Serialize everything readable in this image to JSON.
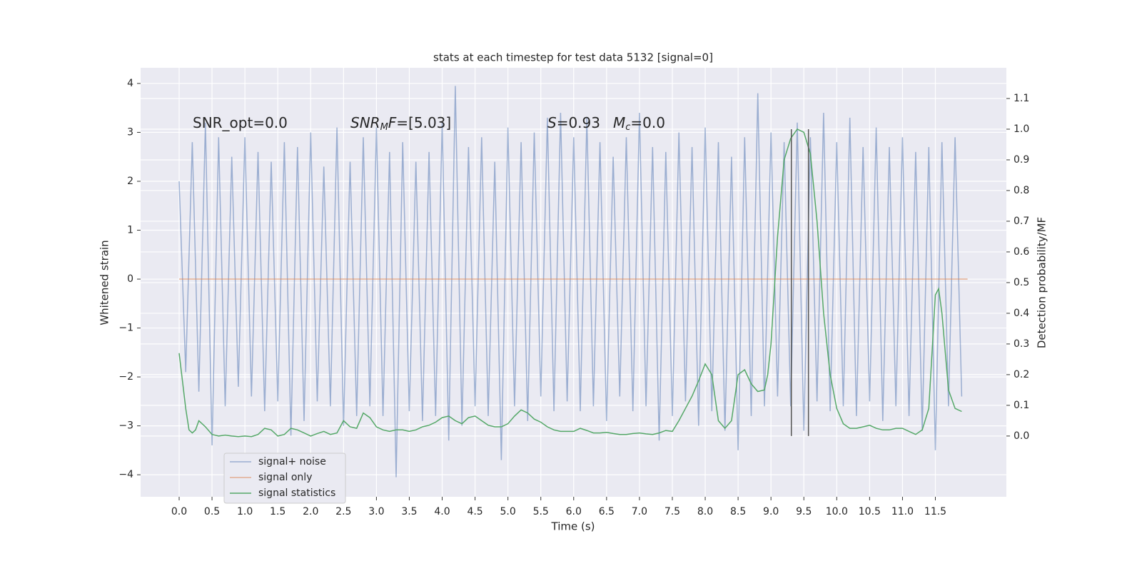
{
  "chart_data": {
    "type": "line",
    "title": "stats at each timestep for test data 5132 [signal=0]",
    "xlabel": "Time (s)",
    "ylabel": "Whitened strain",
    "y2label": "Detection probability/MF",
    "xlim": [
      -0.586,
      12.58
    ],
    "ylim": [
      -4.45,
      4.32
    ],
    "y2lim": [
      -0.198,
      1.2
    ],
    "xticks": [
      {
        "value": 0,
        "label": "0.0"
      },
      0.5,
      {
        "value": 1,
        "label": "1.0"
      },
      1.5,
      {
        "value": 2,
        "label": "2.0"
      },
      2.5,
      {
        "value": 3,
        "label": "3.0"
      },
      3.5,
      {
        "value": 4,
        "label": "4.0"
      },
      4.5,
      {
        "value": 5,
        "label": "5.0"
      },
      5.5,
      {
        "value": 6,
        "label": "6.0"
      },
      6.5,
      {
        "value": 7,
        "label": "7.0"
      },
      7.5,
      {
        "value": 8,
        "label": "8.0"
      },
      8.5,
      {
        "value": 9,
        "label": "9.0"
      },
      9.5,
      {
        "value": 10,
        "label": "10.0"
      },
      10.5,
      {
        "value": 11,
        "label": "11.0"
      },
      11.5
    ],
    "yticks": [
      {
        "value": -4,
        "label": "−4"
      },
      {
        "value": -3,
        "label": "−3"
      },
      {
        "value": -2,
        "label": "−2"
      },
      {
        "value": -1,
        "label": "−1"
      },
      0,
      1,
      2,
      3,
      4
    ],
    "y2ticks": [
      {
        "value": 0,
        "label": "0.0"
      },
      0.1,
      0.2,
      0.3,
      0.4,
      0.5,
      0.6,
      0.7,
      0.8,
      0.9,
      {
        "value": 1,
        "label": "1.0"
      },
      1.1
    ],
    "grid": true,
    "legend": "lower left",
    "series": [
      {
        "name": "signal+ noise",
        "color": "#4c72b0",
        "opacity": 0.5,
        "x": [
          0.0,
          0.1,
          0.2,
          0.3,
          0.4,
          0.5,
          0.6,
          0.7,
          0.8,
          0.9,
          1.0,
          1.1,
          1.2,
          1.3,
          1.4,
          1.5,
          1.6,
          1.7,
          1.8,
          1.9,
          2.0,
          2.1,
          2.2,
          2.3,
          2.4,
          2.5,
          2.6,
          2.7,
          2.8,
          2.9,
          3.0,
          3.1,
          3.2,
          3.3,
          3.4,
          3.5,
          3.6,
          3.7,
          3.8,
          3.9,
          4.0,
          4.1,
          4.2,
          4.3,
          4.4,
          4.5,
          4.6,
          4.7,
          4.8,
          4.9,
          5.0,
          5.1,
          5.2,
          5.3,
          5.4,
          5.5,
          5.6,
          5.7,
          5.8,
          5.9,
          6.0,
          6.1,
          6.2,
          6.3,
          6.4,
          6.5,
          6.6,
          6.7,
          6.8,
          6.9,
          7.0,
          7.1,
          7.2,
          7.3,
          7.4,
          7.5,
          7.6,
          7.7,
          7.8,
          7.9,
          8.0,
          8.1,
          8.2,
          8.3,
          8.4,
          8.5,
          8.6,
          8.7,
          8.8,
          8.9,
          9.0,
          9.1,
          9.2,
          9.3,
          9.4,
          9.5,
          9.6,
          9.7,
          9.8,
          9.9,
          10.0,
          10.1,
          10.2,
          10.3,
          10.4,
          10.5,
          10.6,
          10.7,
          10.8,
          10.9,
          11.0,
          11.1,
          11.2,
          11.3,
          11.4,
          11.5,
          11.6,
          11.7,
          11.8,
          11.9
        ],
        "values": [
          2.0,
          -1.9,
          2.8,
          -2.3,
          3.2,
          -3.4,
          2.9,
          -2.6,
          2.5,
          -2.2,
          2.9,
          -2.4,
          2.6,
          -2.7,
          2.4,
          -2.5,
          2.8,
          -3.2,
          2.7,
          -2.9,
          3.0,
          -2.5,
          2.3,
          -2.6,
          3.1,
          -3.0,
          2.4,
          -2.8,
          2.9,
          -2.6,
          3.1,
          -2.8,
          2.6,
          -4.05,
          2.8,
          -2.7,
          2.4,
          -2.9,
          2.6,
          -2.8,
          3.2,
          -3.3,
          3.95,
          -3.0,
          2.7,
          -2.6,
          2.9,
          -2.8,
          2.4,
          -3.7,
          3.1,
          -2.6,
          2.8,
          -2.9,
          3.0,
          -2.4,
          3.3,
          -2.7,
          3.4,
          -2.5,
          2.9,
          -2.7,
          3.3,
          -2.6,
          2.8,
          -2.9,
          2.5,
          -2.4,
          2.9,
          -2.7,
          3.4,
          -2.6,
          2.7,
          -3.3,
          2.6,
          -2.8,
          3.0,
          -2.5,
          2.7,
          -3.0,
          3.1,
          -2.7,
          2.8,
          -3.1,
          2.5,
          -3.5,
          2.9,
          -2.8,
          3.8,
          -2.6,
          3.0,
          -2.4,
          2.8,
          -2.6,
          3.2,
          -3.1,
          2.9,
          -2.5,
          3.4,
          -2.7,
          2.8,
          -2.6,
          3.3,
          -2.8,
          2.7,
          -2.5,
          3.1,
          -2.9,
          2.7,
          -2.6,
          2.9,
          -2.8,
          2.6,
          -3.1,
          2.7,
          -3.5,
          2.8,
          -2.6,
          2.9,
          -2.4
        ]
      },
      {
        "name": "signal only",
        "color": "#dd8452",
        "opacity": 0.6,
        "x": [
          0.0,
          11.99
        ],
        "values": [
          0,
          0
        ]
      },
      {
        "name": "signal statistics",
        "color": "#55a868",
        "axis": "y2",
        "x": [
          0.0,
          0.1,
          0.15,
          0.2,
          0.25,
          0.3,
          0.4,
          0.5,
          0.6,
          0.7,
          0.8,
          0.9,
          1.0,
          1.1,
          1.2,
          1.3,
          1.4,
          1.5,
          1.6,
          1.7,
          1.8,
          1.9,
          2.0,
          2.1,
          2.2,
          2.3,
          2.4,
          2.5,
          2.6,
          2.7,
          2.8,
          2.9,
          3.0,
          3.1,
          3.2,
          3.3,
          3.4,
          3.5,
          3.6,
          3.7,
          3.8,
          3.9,
          4.0,
          4.1,
          4.2,
          4.3,
          4.4,
          4.5,
          4.6,
          4.7,
          4.8,
          4.9,
          5.0,
          5.1,
          5.2,
          5.3,
          5.4,
          5.5,
          5.6,
          5.7,
          5.8,
          5.9,
          6.0,
          6.1,
          6.2,
          6.3,
          6.4,
          6.5,
          6.6,
          6.7,
          6.8,
          6.9,
          7.0,
          7.1,
          7.2,
          7.3,
          7.4,
          7.5,
          7.6,
          7.7,
          7.8,
          7.9,
          8.0,
          8.1,
          8.2,
          8.3,
          8.4,
          8.5,
          8.6,
          8.7,
          8.8,
          8.9,
          8.95,
          9.0,
          9.1,
          9.2,
          9.3,
          9.4,
          9.5,
          9.6,
          9.7,
          9.8,
          9.9,
          10.0,
          10.1,
          10.2,
          10.3,
          10.4,
          10.5,
          10.6,
          10.7,
          10.8,
          10.9,
          11.0,
          11.1,
          11.2,
          11.3,
          11.4,
          11.5,
          11.55,
          11.6,
          11.7,
          11.8,
          11.9
        ],
        "values": [
          0.27,
          0.09,
          0.02,
          0.01,
          0.02,
          0.05,
          0.03,
          0.005,
          0.0,
          0.003,
          0.0,
          -0.002,
          0.0,
          -0.002,
          0.005,
          0.025,
          0.02,
          0.0,
          0.005,
          0.025,
          0.02,
          0.01,
          0.0,
          0.008,
          0.015,
          0.005,
          0.01,
          0.05,
          0.03,
          0.025,
          0.075,
          0.06,
          0.03,
          0.02,
          0.015,
          0.02,
          0.02,
          0.015,
          0.02,
          0.03,
          0.035,
          0.045,
          0.06,
          0.065,
          0.05,
          0.04,
          0.06,
          0.065,
          0.05,
          0.035,
          0.03,
          0.03,
          0.04,
          0.065,
          0.085,
          0.075,
          0.055,
          0.045,
          0.03,
          0.02,
          0.015,
          0.015,
          0.015,
          0.025,
          0.018,
          0.01,
          0.01,
          0.012,
          0.008,
          0.005,
          0.005,
          0.008,
          0.01,
          0.007,
          0.005,
          0.01,
          0.018,
          0.015,
          0.05,
          0.09,
          0.13,
          0.18,
          0.235,
          0.2,
          0.05,
          0.025,
          0.05,
          0.2,
          0.216,
          0.17,
          0.145,
          0.15,
          0.2,
          0.3,
          0.65,
          0.9,
          0.97,
          1.0,
          0.99,
          0.92,
          0.7,
          0.4,
          0.2,
          0.09,
          0.04,
          0.025,
          0.025,
          0.03,
          0.035,
          0.025,
          0.02,
          0.02,
          0.025,
          0.025,
          0.015,
          0.005,
          0.02,
          0.09,
          0.46,
          0.48,
          0.4,
          0.15,
          0.09,
          0.08
        ]
      }
    ],
    "vlines": {
      "x": [
        9.31,
        9.57
      ],
      "range": [
        0,
        1
      ],
      "color": "#555555"
    },
    "annotations": [
      [
        {
          "t": "SNR_opt=0.0"
        }
      ],
      [
        {
          "t": "SNR",
          "i": true
        },
        {
          "t": "M",
          "i": true,
          "sub": true
        },
        {
          "t": "F",
          "i": true
        },
        {
          "t": "=[5.03]"
        }
      ],
      [
        {
          "t": "S",
          "i": true
        },
        {
          "t": "=0.93"
        }
      ],
      [
        {
          "t": "M",
          "i": true
        },
        {
          "t": "c",
          "i": true,
          "sub": true
        },
        {
          "t": "=0.0"
        }
      ]
    ]
  }
}
